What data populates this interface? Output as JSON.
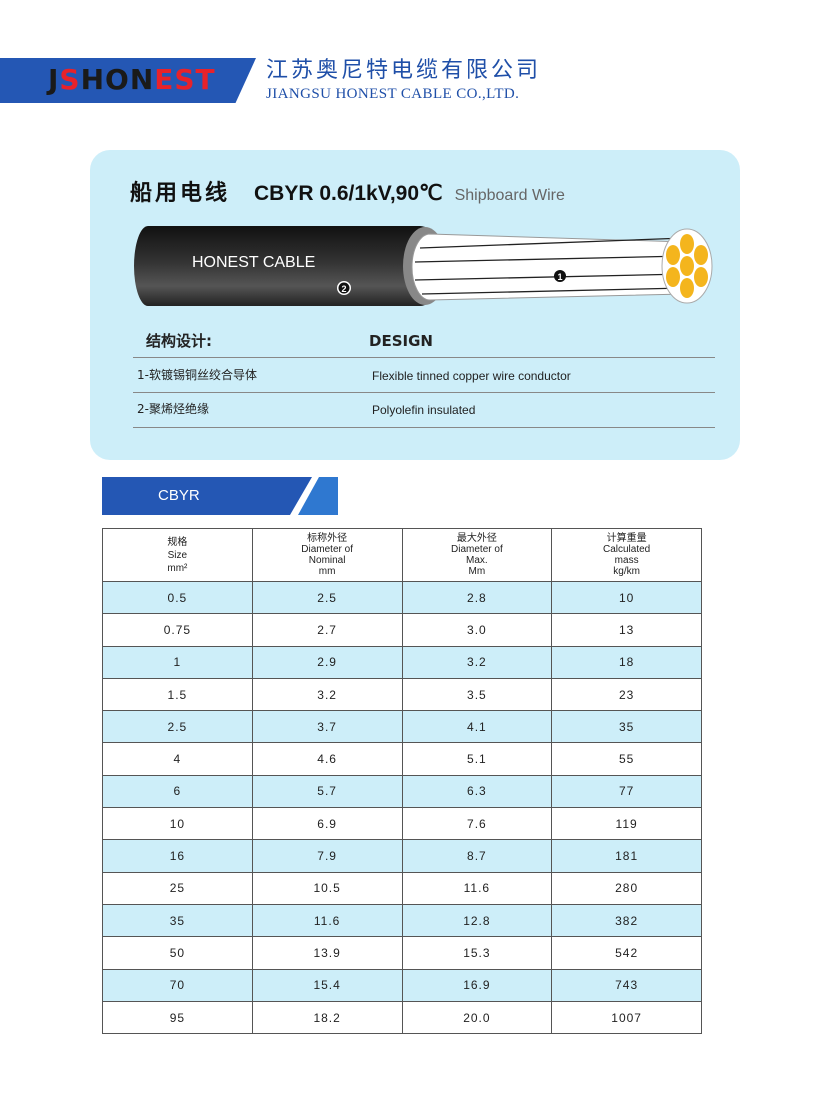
{
  "header": {
    "logo_text": "JSHONEST",
    "company_cn": "江苏奥尼特电缆有限公司",
    "company_en": "JIANGSU HONEST CABLE CO.,LTD.",
    "brand_color": "#2457b4"
  },
  "product": {
    "title_cn": "船用电线",
    "title_code": "CBYR 0.6/1kV,90℃",
    "title_en": "Shipboard Wire",
    "cable_print": "HONEST CABLE",
    "marker_1": "1",
    "marker_2": "2"
  },
  "design": {
    "heading_cn": "结构设计:",
    "heading_en": "DESIGN",
    "rows": [
      {
        "cn": "1-软镀锡铜丝绞合导体",
        "en": "Flexible tinned copper wire conductor"
      },
      {
        "cn": "2-聚烯烃绝缘",
        "en": "Polyolefin insulated"
      }
    ]
  },
  "table_tab": "CBYR",
  "table": {
    "headers": [
      {
        "cn": "规格",
        "l1": "Size",
        "l2": "mm²",
        "l3": ""
      },
      {
        "cn": "标称外径",
        "l1": "Diameter of",
        "l2": "Nominal",
        "l3": "mm"
      },
      {
        "cn": "最大外径",
        "l1": "Diameter of",
        "l2": "Max.",
        "l3": "Mm"
      },
      {
        "cn": "计算重量",
        "l1": "Calculated",
        "l2": "mass",
        "l3": "kg/km"
      }
    ],
    "rows": [
      [
        "0.5",
        "2.5",
        "2.8",
        "10"
      ],
      [
        "0.75",
        "2.7",
        "3.0",
        "13"
      ],
      [
        "1",
        "2.9",
        "3.2",
        "18"
      ],
      [
        "1.5",
        "3.2",
        "3.5",
        "23"
      ],
      [
        "2.5",
        "3.7",
        "4.1",
        "35"
      ],
      [
        "4",
        "4.6",
        "5.1",
        "55"
      ],
      [
        "6",
        "5.7",
        "6.3",
        "77"
      ],
      [
        "10",
        "6.9",
        "7.6",
        "119"
      ],
      [
        "16",
        "7.9",
        "8.7",
        "181"
      ],
      [
        "25",
        "10.5",
        "11.6",
        "280"
      ],
      [
        "35",
        "11.6",
        "12.8",
        "382"
      ],
      [
        "50",
        "13.9",
        "15.3",
        "542"
      ],
      [
        "70",
        "15.4",
        "16.9",
        "743"
      ],
      [
        "95",
        "18.2",
        "20.0",
        "1007"
      ]
    ]
  }
}
